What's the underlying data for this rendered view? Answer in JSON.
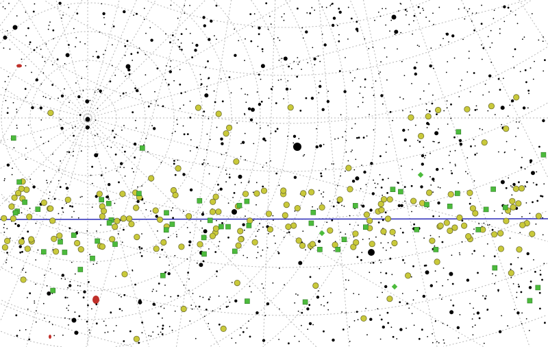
{
  "map": {
    "background": "#ffffff",
    "grid_color": "#b4b4b4",
    "equator_color": "#2a2ab8",
    "star_color": "#000000",
    "legend": {
      "star": "star-icon",
      "galaxy_or_cluster": "yellow-circle-marker",
      "nebula": "green-square-marker",
      "planetary_nebula": "green-diamond-marker",
      "nebula_patch": "red-blob-marker"
    },
    "marker_colors": {
      "cluster_fill": "#c9c93a",
      "cluster_stroke": "#6e6e30",
      "nebula_fill": "#4cbb3c",
      "nebula_stroke": "#2e7a25",
      "patch_fill": "#c0302a"
    }
  }
}
